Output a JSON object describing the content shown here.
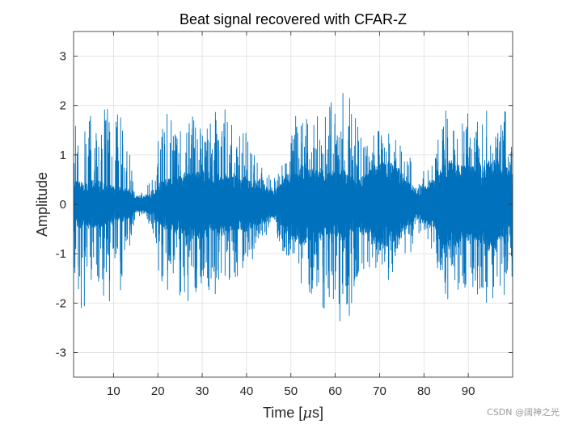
{
  "chart_data": {
    "type": "line",
    "title": "Beat signal recovered with CFAR-Z",
    "xlabel_prefix": "Time [",
    "xlabel_mu": "μ",
    "xlabel_suffix": "s]",
    "ylabel": "Amplitude",
    "xlim": [
      1,
      100
    ],
    "ylim": [
      -3.5,
      3.5
    ],
    "xticks": [
      10,
      20,
      30,
      40,
      50,
      60,
      70,
      80,
      90
    ],
    "yticks": [
      -3,
      -2,
      -1,
      0,
      1,
      2,
      3
    ],
    "grid": true,
    "series": [
      {
        "name": "beat signal",
        "color": "#0072BD",
        "envelope_t": [
          1,
          3,
          6,
          10,
          13,
          15,
          17,
          19,
          21,
          24,
          28,
          31,
          35,
          38,
          40,
          42,
          44,
          46,
          49,
          52,
          55,
          58,
          62,
          65,
          67,
          70,
          73,
          76,
          79,
          82,
          85,
          88,
          92,
          95,
          98,
          100
        ],
        "envelope_a": [
          2.1,
          2.3,
          1.9,
          2.4,
          1.4,
          0.25,
          0.25,
          0.7,
          1.9,
          2.0,
          2.1,
          1.8,
          2.1,
          1.8,
          1.5,
          1.1,
          0.8,
          0.6,
          1.3,
          2.1,
          2.1,
          2.2,
          2.8,
          2.0,
          1.5,
          1.6,
          1.7,
          1.3,
          0.6,
          1.2,
          2.3,
          1.9,
          2.0,
          2.2,
          2.1,
          1.7
        ],
        "dense_t": [
          1,
          3,
          6,
          10,
          13,
          15,
          17,
          19,
          21,
          24,
          28,
          31,
          35,
          38,
          40,
          42,
          44,
          46,
          49,
          52,
          55,
          58,
          62,
          65,
          67,
          70,
          73,
          76,
          79,
          82,
          85,
          88,
          92,
          95,
          98,
          100
        ],
        "dense_a": [
          0.5,
          0.4,
          0.45,
          0.35,
          0.3,
          0.15,
          0.15,
          0.2,
          0.45,
          0.55,
          0.6,
          0.55,
          0.55,
          0.5,
          0.5,
          0.4,
          0.35,
          0.25,
          0.55,
          0.75,
          0.65,
          0.6,
          0.65,
          0.45,
          0.6,
          0.85,
          0.75,
          0.45,
          0.25,
          0.5,
          0.85,
          0.75,
          0.7,
          0.85,
          0.7,
          0.6
        ],
        "points": 4200
      }
    ]
  },
  "watermark": "CSDN @阔神之光"
}
